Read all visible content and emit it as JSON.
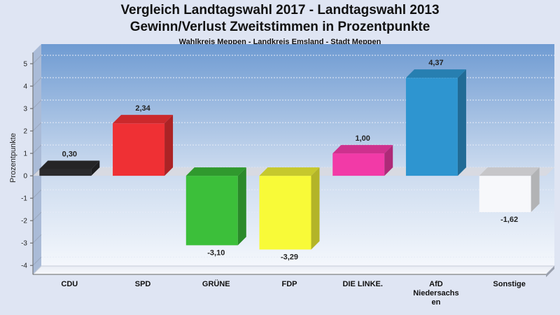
{
  "header": {
    "title_line1": "Vergleich Landtagswahl 2017 - Landtagswahl 2013",
    "title_line2": "Gewinn/Verlust Zweitstimmen in Prozentpunkte",
    "subtitle": "Wahlkreis Meppen - Landkreis Emsland - Stadt Meppen"
  },
  "chart_data": {
    "type": "bar",
    "title": "Vergleich Landtagswahl 2017 - Landtagswahl 2013 / Gewinn/Verlust Zweitstimmen in Prozentpunkte",
    "subtitle": "Wahlkreis Meppen - Landkreis Emsland - Stadt Meppen",
    "ylabel": "Prozentpunkte",
    "xlabel": "",
    "ylim": [
      -4.4,
      5.5
    ],
    "yticks": [
      5,
      4,
      3,
      2,
      1,
      0,
      -1,
      -2,
      -3,
      -4
    ],
    "grid": true,
    "categories": [
      "CDU",
      "SPD",
      "GRÜNE",
      "FDP",
      "DIE LINKE.",
      "AfD Niedersachsen",
      "Sonstige"
    ],
    "category_label_lines": [
      [
        "CDU"
      ],
      [
        "SPD"
      ],
      [
        "GRÜNE"
      ],
      [
        "FDP"
      ],
      [
        "DIE LINKE."
      ],
      [
        "AfD",
        "Niedersachs",
        "en"
      ],
      [
        "Sonstige"
      ]
    ],
    "values": [
      0.3,
      2.34,
      -3.1,
      -3.29,
      1.0,
      4.37,
      -1.62
    ],
    "value_labels": [
      "0,30",
      "2,34",
      "-3,10",
      "-3,29",
      "1,00",
      "4,37",
      "-1,62"
    ],
    "colors": [
      "#2b2b2d",
      "#ef3034",
      "#3cbf3a",
      "#f8fa38",
      "#f23aa7",
      "#2e95d0",
      "#f7f8fb"
    ]
  }
}
